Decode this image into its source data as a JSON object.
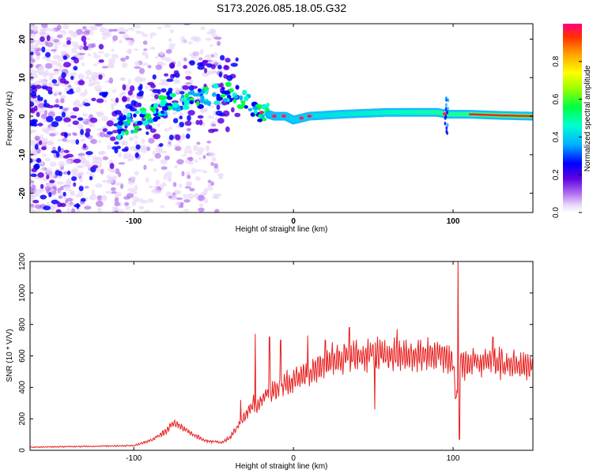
{
  "title": "S173.2026.085.18.05.G32",
  "chart_data": [
    {
      "type": "heatmap",
      "title": "",
      "xlabel": "Height of straight line (km)",
      "ylabel": "Frequency (Hz)",
      "xlim": [
        -165,
        150
      ],
      "ylim": [
        -25,
        24
      ],
      "xticks": [
        -100,
        0,
        100
      ],
      "yticks": [
        20,
        10,
        0,
        -10,
        -20
      ],
      "colorbar": {
        "label": "Normalized spectral amplitude",
        "range": [
          0,
          1
        ],
        "ticks": [
          0.0,
          0.2,
          0.4,
          0.6,
          0.8
        ],
        "colors": [
          "#e8d8f8",
          "#b070f0",
          "#6000e0",
          "#0000ff",
          "#00b0ff",
          "#00ffd0",
          "#00ff40",
          "#a0ff00",
          "#ffff00",
          "#ffa000",
          "#ff3000",
          "#ff0080"
        ]
      },
      "ridge": {
        "x": [
          -110,
          -95,
          -85,
          -75,
          -65,
          -55,
          -45,
          -38,
          -32,
          -26,
          -20,
          -12,
          -5,
          0,
          10,
          30,
          60,
          90,
          96,
          110,
          130,
          150
        ],
        "y": [
          -3,
          -1,
          2,
          4,
          4,
          5,
          6,
          6,
          4,
          3,
          1,
          0,
          0,
          -1,
          0,
          0.5,
          1,
          1,
          0.5,
          0.5,
          0.2,
          0
        ]
      }
    },
    {
      "type": "line",
      "title": "",
      "xlabel": "Height of straight line (km)",
      "ylabel": "SNR (10 * V/V)",
      "xlim": [
        -165,
        150
      ],
      "ylim": [
        0,
        1200
      ],
      "xticks": [
        -100,
        0,
        100
      ],
      "yticks": [
        0,
        200,
        400,
        600,
        800,
        1000,
        1200
      ],
      "color": "#e82020",
      "x": [
        -165,
        -130,
        -100,
        -90,
        -80,
        -75,
        -70,
        -65,
        -55,
        -45,
        -40,
        -35,
        -30,
        -25,
        -22,
        -18,
        -15,
        -10,
        -5,
        0,
        5,
        10,
        15,
        20,
        25,
        30,
        40,
        50,
        60,
        70,
        80,
        90,
        95,
        100,
        102,
        104,
        106,
        110,
        120,
        130,
        140,
        150
      ],
      "y": [
        20,
        25,
        30,
        60,
        120,
        180,
        150,
        110,
        60,
        50,
        80,
        150,
        220,
        300,
        280,
        350,
        360,
        380,
        430,
        440,
        480,
        500,
        520,
        560,
        580,
        590,
        600,
        610,
        600,
        600,
        600,
        610,
        600,
        560,
        300,
        560,
        550,
        550,
        560,
        550,
        540,
        540
      ],
      "spikes": [
        {
          "x": -33,
          "y": 320
        },
        {
          "x": -24,
          "y": 740
        },
        {
          "x": -15,
          "y": 720
        },
        {
          "x": -8,
          "y": 700
        },
        {
          "x": 9,
          "y": 730
        },
        {
          "x": 20,
          "y": 700
        },
        {
          "x": 35,
          "y": 780
        },
        {
          "x": 51,
          "y": 260
        },
        {
          "x": 65,
          "y": 770
        },
        {
          "x": 103,
          "y": 1210
        },
        {
          "x": 104,
          "y": 70
        },
        {
          "x": 125,
          "y": 720
        }
      ]
    }
  ]
}
